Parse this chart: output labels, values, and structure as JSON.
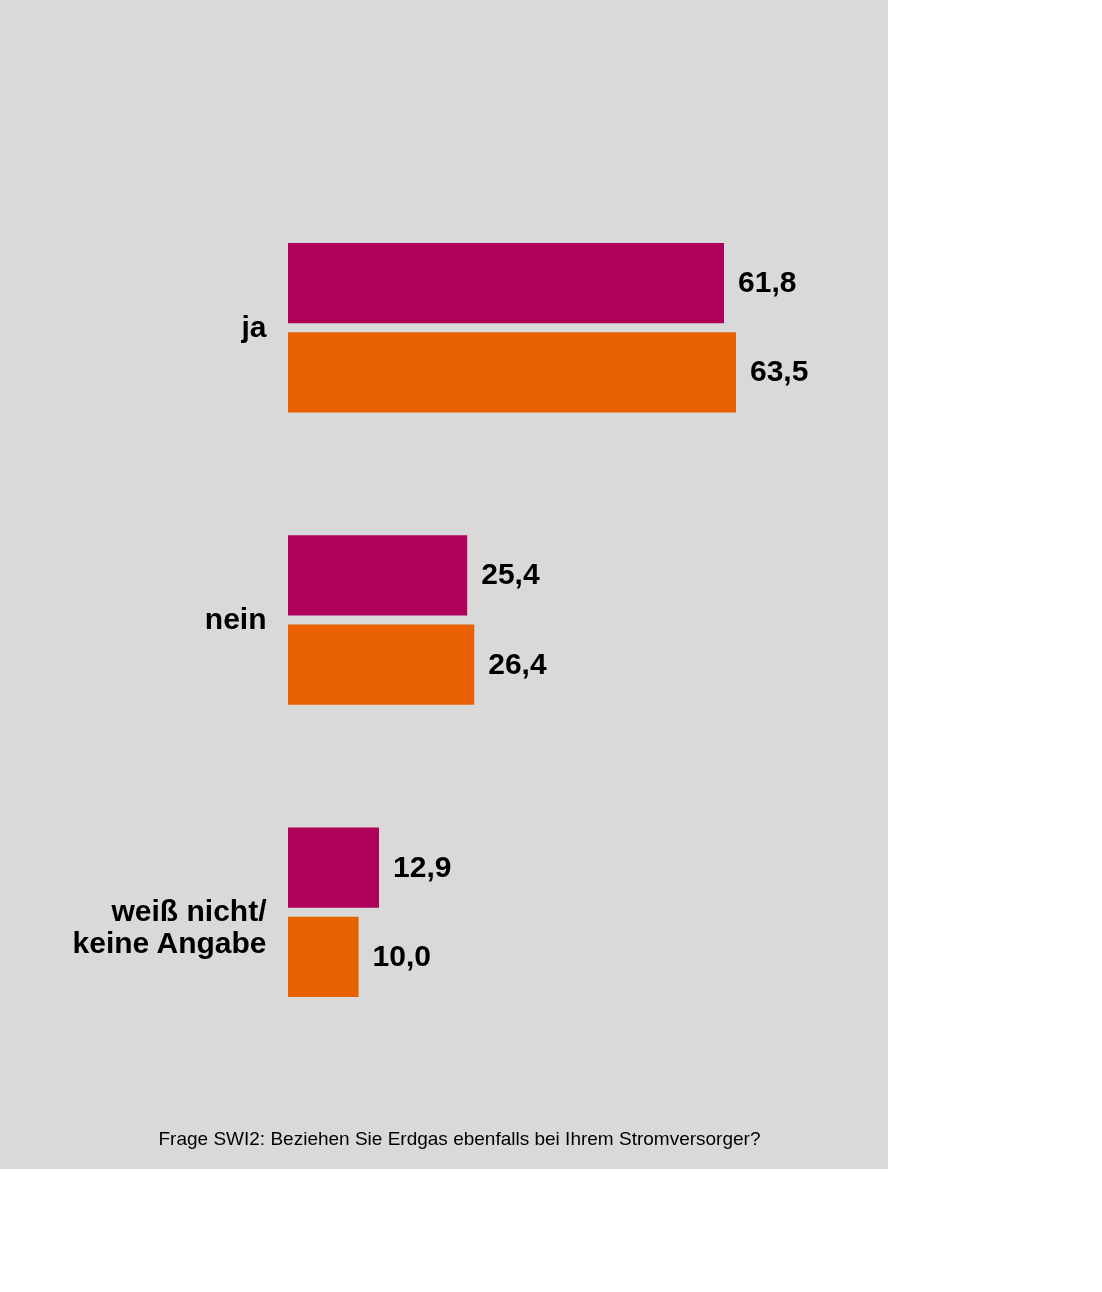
{
  "chart_data": {
    "type": "bar",
    "orientation": "horizontal",
    "categories": [
      "ja",
      "nein",
      "weiß nicht/\nkeine Angabe"
    ],
    "series": [
      {
        "color": "#b0005a",
        "values": [
          61.8,
          25.4,
          12.9
        ],
        "value_labels": [
          "61,8",
          "25,4",
          "12,9"
        ]
      },
      {
        "color": "#e86000",
        "values": [
          63.5,
          26.4,
          10.0
        ],
        "value_labels": [
          "63,5",
          "26,4",
          "10,0"
        ]
      }
    ],
    "annotations": [
      "Frage SWI2: Beziehen Sie Erdgas ebenfalls bei Ihrem Stromversorger?"
    ],
    "legend": false
  }
}
